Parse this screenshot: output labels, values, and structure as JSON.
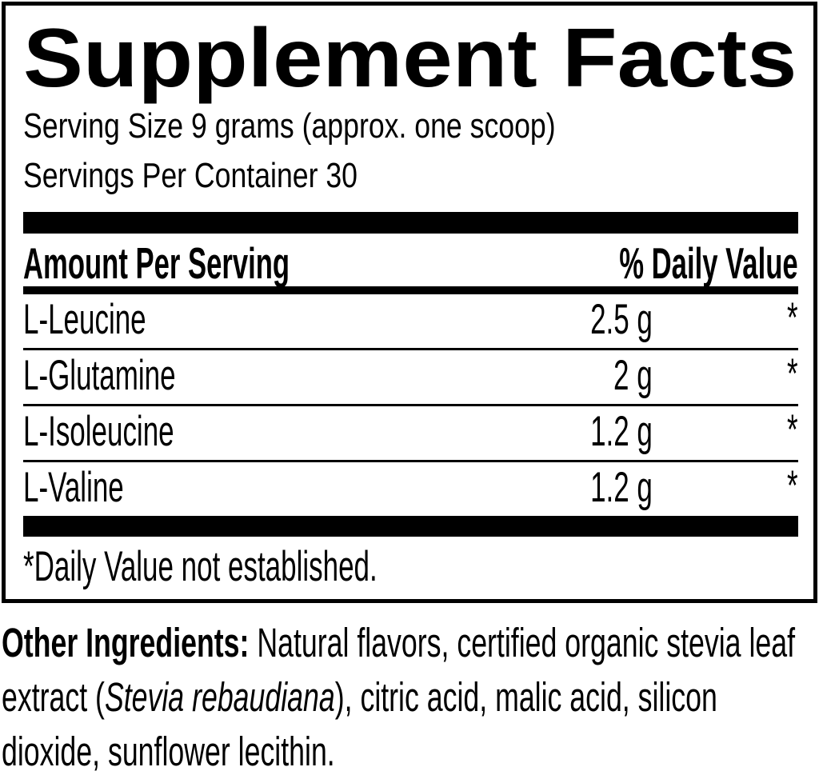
{
  "label": {
    "title": "Supplement Facts",
    "serving_size": "Serving Size 9 grams (approx. one scoop)",
    "servings_per_container": "Servings Per Container 30",
    "table": {
      "amount_header": "Amount Per Serving",
      "daily_value_header": "% Daily Value",
      "rows": [
        {
          "name": "L-Leucine",
          "amount": "2.5 g",
          "daily_value": "*"
        },
        {
          "name": "L-Glutamine",
          "amount": "2 g",
          "daily_value": "*"
        },
        {
          "name": "L-Isoleucine",
          "amount": "1.2 g",
          "daily_value": "*"
        },
        {
          "name": "L-Valine",
          "amount": "1.2 g",
          "daily_value": "*"
        }
      ],
      "footnote": "*Daily Value not established."
    },
    "other_ingredients": {
      "heading": "Other Ingredients:",
      "line1_rest": " Natural flavors, certified organic stevia leaf",
      "line2_pre": "extract (",
      "line2_italic": "Stevia rebaudiana",
      "line2_post": "), citric acid, malic acid, silicon",
      "line3": "dioxide, sunflower lecithin."
    },
    "colors": {
      "text": "#000000",
      "background": "#ffffff"
    }
  }
}
